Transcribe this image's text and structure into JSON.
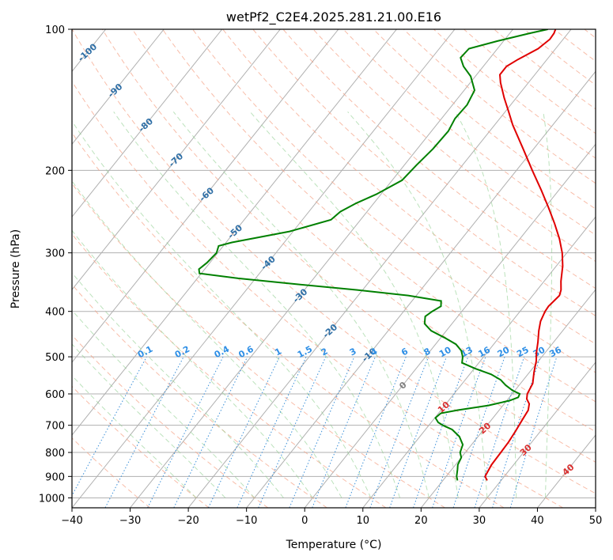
{
  "chart_data": {
    "type": "skew-t",
    "title": "wetPf2_C2E4.2025.281.21.00.E16",
    "xlabel": "Temperature (°C)",
    "ylabel": "Pressure (hPa)",
    "xlim": [
      -40,
      50
    ],
    "ylim": [
      1050,
      100
    ],
    "y_scale": "log",
    "x_ticks": [
      "−40",
      "−30",
      "−20",
      "−10",
      "0",
      "10",
      "20",
      "30",
      "40",
      "50"
    ],
    "y_ticks": [
      "100",
      "200",
      "300",
      "400",
      "500",
      "600",
      "700",
      "800",
      "900",
      "1000"
    ],
    "grid": true,
    "isotherm_labels": [
      "-100",
      "-90",
      "-80",
      "-70",
      "-60",
      "-50",
      "-40",
      "-30",
      "-20",
      "-10",
      "0",
      "10",
      "20",
      "30",
      "40"
    ],
    "mixing_ratio_labels": [
      "0.1",
      "0.2",
      "0.4",
      "0.6",
      "1",
      "1.5",
      "2",
      "3",
      "4",
      "6",
      "8",
      "10",
      "13",
      "16",
      "20",
      "25",
      "30",
      "36"
    ],
    "series": [
      {
        "type": "temperature",
        "color": "#e00000",
        "points": [
          [
            918,
            27.6
          ],
          [
            900,
            26.7
          ],
          [
            850,
            26.2
          ],
          [
            800,
            26.1
          ],
          [
            760,
            26.0
          ],
          [
            720,
            25.7
          ],
          [
            680,
            25.3
          ],
          [
            650,
            25.0
          ],
          [
            630,
            24.3
          ],
          [
            615,
            23.2
          ],
          [
            600,
            22.6
          ],
          [
            570,
            22.1
          ],
          [
            540,
            20.8
          ],
          [
            510,
            19.6
          ],
          [
            490,
            18.5
          ],
          [
            465,
            17.3
          ],
          [
            440,
            15.9
          ],
          [
            420,
            14.9
          ],
          [
            400,
            14.3
          ],
          [
            390,
            14.2
          ],
          [
            380,
            14.4
          ],
          [
            370,
            14.6
          ],
          [
            360,
            14.1
          ],
          [
            345,
            12.9
          ],
          [
            320,
            11.1
          ],
          [
            300,
            9.2
          ],
          [
            280,
            6.8
          ],
          [
            260,
            3.9
          ],
          [
            240,
            0.6
          ],
          [
            220,
            -3.1
          ],
          [
            200,
            -7.3
          ],
          [
            180,
            -11.8
          ],
          [
            160,
            -16.9
          ],
          [
            150,
            -19.4
          ],
          [
            140,
            -22.1
          ],
          [
            130,
            -24.8
          ],
          [
            125,
            -26.0
          ],
          [
            120,
            -26.0
          ],
          [
            116,
            -25.0
          ],
          [
            110,
            -23.0
          ],
          [
            105,
            -22.3
          ],
          [
            102,
            -22.4
          ],
          [
            100,
            -22.7
          ]
        ]
      },
      {
        "type": "dewpoint",
        "color": "#008000",
        "points": [
          [
            918,
            22.5
          ],
          [
            900,
            21.8
          ],
          [
            870,
            21.0
          ],
          [
            850,
            20.4
          ],
          [
            820,
            20.0
          ],
          [
            800,
            19.1
          ],
          [
            770,
            18.5
          ],
          [
            740,
            16.8
          ],
          [
            715,
            14.6
          ],
          [
            700,
            12.4
          ],
          [
            690,
            11.2
          ],
          [
            675,
            10.1
          ],
          [
            660,
            10.4
          ],
          [
            650,
            12.8
          ],
          [
            635,
            17.5
          ],
          [
            620,
            20.5
          ],
          [
            610,
            21.5
          ],
          [
            600,
            21.3
          ],
          [
            590,
            19.6
          ],
          [
            575,
            17.7
          ],
          [
            560,
            16.1
          ],
          [
            545,
            13.7
          ],
          [
            530,
            10.2
          ],
          [
            515,
            7.1
          ],
          [
            500,
            6.4
          ],
          [
            485,
            5.3
          ],
          [
            470,
            3.5
          ],
          [
            455,
            0.6
          ],
          [
            440,
            -2.6
          ],
          [
            425,
            -4.7
          ],
          [
            410,
            -5.6
          ],
          [
            400,
            -5.1
          ],
          [
            390,
            -4.3
          ],
          [
            380,
            -5.0
          ],
          [
            370,
            -11.4
          ],
          [
            360,
            -20.9
          ],
          [
            350,
            -32.2
          ],
          [
            340,
            -43.0
          ],
          [
            332,
            -50.3
          ],
          [
            325,
            -51.0
          ],
          [
            315,
            -50.5
          ],
          [
            300,
            -50.2
          ],
          [
            290,
            -50.8
          ],
          [
            285,
            -49.0
          ],
          [
            270,
            -40.6
          ],
          [
            255,
            -35.1
          ],
          [
            245,
            -34.6
          ],
          [
            235,
            -33.0
          ],
          [
            225,
            -30.8
          ],
          [
            210,
            -28.3
          ],
          [
            195,
            -27.9
          ],
          [
            180,
            -27.3
          ],
          [
            165,
            -27.1
          ],
          [
            155,
            -27.7
          ],
          [
            145,
            -27.5
          ],
          [
            135,
            -28.2
          ],
          [
            126,
            -30.8
          ],
          [
            120,
            -33.4
          ],
          [
            115,
            -35.1
          ],
          [
            110,
            -34.9
          ],
          [
            106,
            -31.1
          ],
          [
            102,
            -26.6
          ],
          [
            100,
            -24.0
          ]
        ]
      }
    ]
  }
}
